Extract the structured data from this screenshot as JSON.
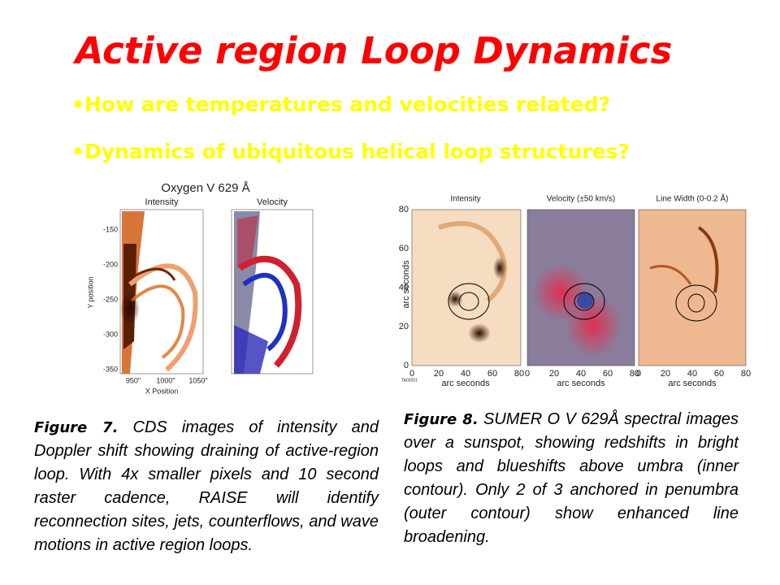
{
  "title": "Active region Loop Dynamics",
  "bullets": [
    "•How are temperatures and velocities related?",
    "•Dynamics of ubiquitous helical loop structures?"
  ],
  "figure7": {
    "title": "Oxygen  V 629 Å",
    "panels": [
      "Intensity",
      "Velocity"
    ],
    "y_label": "Y position",
    "x_label": "X Position",
    "yticks": [
      "-150",
      "-200",
      "-250",
      "-300",
      "-350"
    ],
    "xticks": [
      "950\"",
      "1000\"",
      "1050\""
    ],
    "caption_label": "Figure 7.",
    "caption": "CDS images of intensity and Doppler shift showing draining of active-region loop.  With 4x smaller pixels and 10 second raster cadence, RAISE will identify reconnection sites, jets, counterflows, and wave motions in active region loops."
  },
  "figure8": {
    "panels": [
      "Intensity",
      "Velocity (±50 km/s)",
      "Line Width (0-0.2 Å)"
    ],
    "y_label": "arc seconds",
    "x_label": "arc seconds",
    "yticks": [
      "80",
      "60",
      "40",
      "20",
      "0"
    ],
    "xticks": [
      "0",
      "20",
      "40",
      "60",
      "80"
    ],
    "code": "TA03021",
    "caption_label": "Figure 8.",
    "caption": "SUMER O V 629Å spectral images over a sunspot, showing redshifts in bright loops and blueshifts above umbra (inner contour).  Only 2 of 3 anchored in penumbra (outer contour) show enhanced line broadening."
  }
}
